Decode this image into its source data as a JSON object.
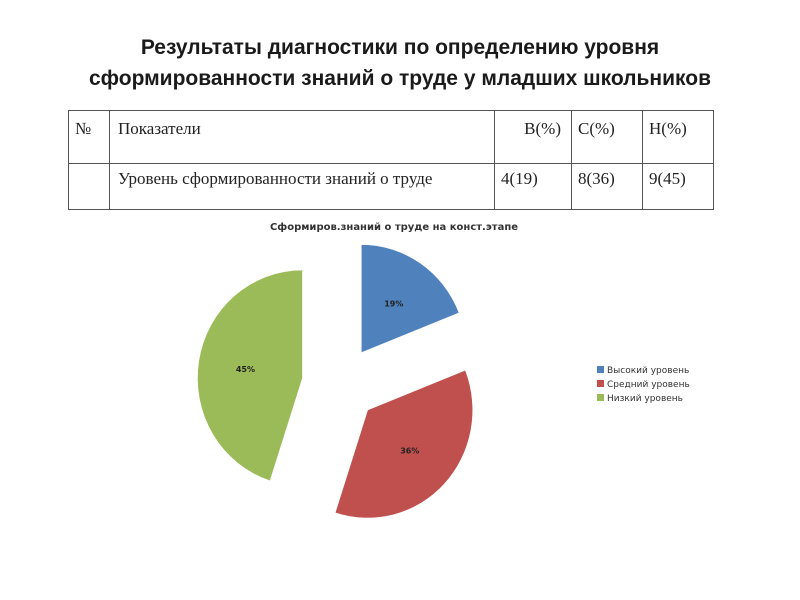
{
  "header": {
    "title_line1": "Результаты диагностики  по определению уровня",
    "title_line2": "сформированности знаний о труде у младших школьников"
  },
  "table": {
    "columns": [
      "№",
      "Показатели",
      "В(%)",
      "С(%)",
      "Н(%)"
    ],
    "rows": [
      {
        "num": "",
        "indicator": "Уровень сформированности знаний о труде",
        "b": "4(19)",
        "c": "8(36)",
        "h": "9(45)"
      }
    ]
  },
  "chart_data": {
    "type": "pie",
    "title": "Сформиров.знаний о труде на конст.этапе",
    "categories": [
      "Высокий уровень",
      "Средний уровень",
      "Низкий уровень"
    ],
    "values": [
      19,
      36,
      45
    ],
    "labels": [
      "19%",
      "36%",
      "45%"
    ],
    "colors": [
      "#4f81bd",
      "#c0504d",
      "#9bbb59"
    ],
    "legend": "right"
  }
}
